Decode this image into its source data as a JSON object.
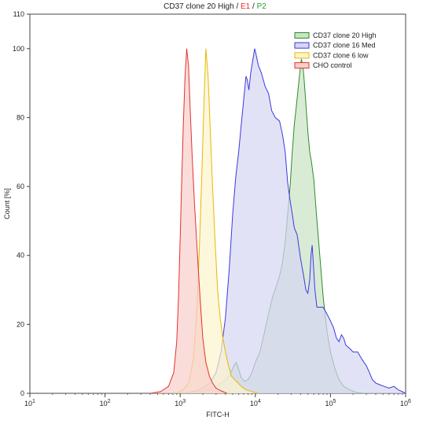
{
  "chart_data": {
    "type": "area",
    "title": {
      "main": "CD37 clone 20 High",
      "sep1": " / ",
      "gate1": "E1",
      "sep2": " / ",
      "gate2": "P2"
    },
    "xlabel": "FITC-H",
    "ylabel": "Count [%]",
    "x_scale": "log",
    "xlim": [
      10,
      1000000
    ],
    "ylim": [
      0,
      110
    ],
    "x_ticks": [
      {
        "value": 10,
        "base": "10",
        "exp": "1"
      },
      {
        "value": 100,
        "base": "10",
        "exp": "2"
      },
      {
        "value": 1000,
        "base": "10",
        "exp": "3"
      },
      {
        "value": 10000,
        "base": "10",
        "exp": "4"
      },
      {
        "value": 100000,
        "base": "10",
        "exp": "5"
      },
      {
        "value": 1000000,
        "base": "10",
        "exp": "6"
      }
    ],
    "y_ticks": [
      0,
      20,
      40,
      60,
      80,
      100,
      110
    ],
    "legend_position": "top-right",
    "series": [
      {
        "name": "CD37 clone 20 High",
        "stroke": "#2e8b2e",
        "fill": "#c9e3c3",
        "points": [
          [
            800,
            0
          ],
          [
            1500,
            0.3
          ],
          [
            2200,
            0.8
          ],
          [
            3000,
            2
          ],
          [
            3800,
            3.5
          ],
          [
            4500,
            5
          ],
          [
            5200,
            8
          ],
          [
            5600,
            9
          ],
          [
            6000,
            7
          ],
          [
            6500,
            4.5
          ],
          [
            7200,
            3.5
          ],
          [
            8000,
            4
          ],
          [
            9000,
            6
          ],
          [
            10000,
            9
          ],
          [
            11500,
            12
          ],
          [
            13000,
            17
          ],
          [
            15000,
            23
          ],
          [
            17000,
            28
          ],
          [
            19000,
            31
          ],
          [
            21000,
            34
          ],
          [
            23000,
            38
          ],
          [
            25000,
            44
          ],
          [
            27000,
            52
          ],
          [
            29000,
            60
          ],
          [
            31000,
            70
          ],
          [
            33000,
            78
          ],
          [
            35000,
            83
          ],
          [
            37000,
            88
          ],
          [
            39000,
            93
          ],
          [
            41000,
            97
          ],
          [
            43000,
            95
          ],
          [
            45000,
            90
          ],
          [
            47000,
            84
          ],
          [
            50000,
            76
          ],
          [
            53000,
            70
          ],
          [
            56000,
            67
          ],
          [
            60000,
            62
          ],
          [
            65000,
            52
          ],
          [
            72000,
            40
          ],
          [
            80000,
            28
          ],
          [
            90000,
            18
          ],
          [
            100000,
            12
          ],
          [
            115000,
            7
          ],
          [
            130000,
            4
          ],
          [
            150000,
            2
          ],
          [
            180000,
            1
          ],
          [
            220000,
            0.3
          ],
          [
            280000,
            0
          ]
        ]
      },
      {
        "name": "CD37 clone 16 Med",
        "stroke": "#3a3ae0",
        "fill": "#d6d6f4",
        "points": [
          [
            1200,
            0
          ],
          [
            1800,
            1
          ],
          [
            2500,
            3
          ],
          [
            3000,
            6
          ],
          [
            3500,
            12
          ],
          [
            4000,
            22
          ],
          [
            4500,
            36
          ],
          [
            5000,
            52
          ],
          [
            5500,
            63
          ],
          [
            6000,
            70
          ],
          [
            6500,
            78
          ],
          [
            7200,
            88
          ],
          [
            7500,
            92
          ],
          [
            7800,
            91
          ],
          [
            8200,
            88
          ],
          [
            8700,
            93
          ],
          [
            9300,
            97
          ],
          [
            9800,
            100
          ],
          [
            10300,
            98
          ],
          [
            11000,
            95
          ],
          [
            12000,
            93
          ],
          [
            13500,
            89
          ],
          [
            15000,
            87
          ],
          [
            16500,
            82
          ],
          [
            18500,
            80
          ],
          [
            21000,
            79
          ],
          [
            23000,
            75
          ],
          [
            25000,
            70
          ],
          [
            27000,
            61
          ],
          [
            29000,
            56
          ],
          [
            31000,
            52
          ],
          [
            33000,
            48
          ],
          [
            36000,
            46
          ],
          [
            40000,
            39
          ],
          [
            44000,
            34
          ],
          [
            47000,
            30
          ],
          [
            50000,
            29
          ],
          [
            53000,
            33
          ],
          [
            55000,
            40
          ],
          [
            57000,
            43
          ],
          [
            59000,
            38
          ],
          [
            62000,
            30
          ],
          [
            66000,
            25
          ],
          [
            72000,
            25
          ],
          [
            80000,
            25
          ],
          [
            90000,
            23
          ],
          [
            100000,
            21
          ],
          [
            110000,
            19
          ],
          [
            120000,
            16
          ],
          [
            130000,
            15
          ],
          [
            140000,
            17
          ],
          [
            150000,
            16
          ],
          [
            160000,
            14
          ],
          [
            180000,
            13
          ],
          [
            200000,
            12
          ],
          [
            230000,
            12
          ],
          [
            260000,
            10
          ],
          [
            300000,
            8
          ],
          [
            330000,
            6
          ],
          [
            360000,
            4
          ],
          [
            400000,
            3
          ],
          [
            450000,
            2.5
          ],
          [
            520000,
            2
          ],
          [
            600000,
            1.5
          ],
          [
            700000,
            2
          ],
          [
            800000,
            1
          ],
          [
            900000,
            0.5
          ],
          [
            1000000,
            0
          ]
        ]
      },
      {
        "name": "CD37 clone 6 low",
        "stroke": "#e8b800",
        "fill": "#fcf3cd",
        "points": [
          [
            900,
            0
          ],
          [
            1100,
            1
          ],
          [
            1300,
            3
          ],
          [
            1500,
            10
          ],
          [
            1650,
            22
          ],
          [
            1800,
            42
          ],
          [
            1950,
            65
          ],
          [
            2080,
            85
          ],
          [
            2200,
            100
          ],
          [
            2350,
            92
          ],
          [
            2500,
            78
          ],
          [
            2700,
            60
          ],
          [
            2900,
            45
          ],
          [
            3150,
            30
          ],
          [
            3400,
            22
          ],
          [
            3700,
            16
          ],
          [
            4000,
            12
          ],
          [
            4400,
            8
          ],
          [
            4800,
            5
          ],
          [
            5300,
            4
          ],
          [
            5900,
            3
          ],
          [
            6500,
            2
          ],
          [
            7500,
            1
          ],
          [
            9000,
            0.5
          ],
          [
            11000,
            0
          ]
        ]
      },
      {
        "name": "CHO control",
        "stroke": "#e63030",
        "fill": "#f8cfcb",
        "points": [
          [
            400,
            0
          ],
          [
            550,
            0.5
          ],
          [
            700,
            2
          ],
          [
            820,
            6
          ],
          [
            900,
            15
          ],
          [
            950,
            28
          ],
          [
            1000,
            45
          ],
          [
            1050,
            62
          ],
          [
            1100,
            78
          ],
          [
            1160,
            92
          ],
          [
            1220,
            100
          ],
          [
            1290,
            95
          ],
          [
            1360,
            82
          ],
          [
            1450,
            68
          ],
          [
            1550,
            55
          ],
          [
            1700,
            40
          ],
          [
            1850,
            27
          ],
          [
            2000,
            16
          ],
          [
            2200,
            9
          ],
          [
            2450,
            5
          ],
          [
            2700,
            3
          ],
          [
            3000,
            1.5
          ],
          [
            3500,
            0.7
          ],
          [
            4200,
            0
          ]
        ]
      }
    ]
  }
}
